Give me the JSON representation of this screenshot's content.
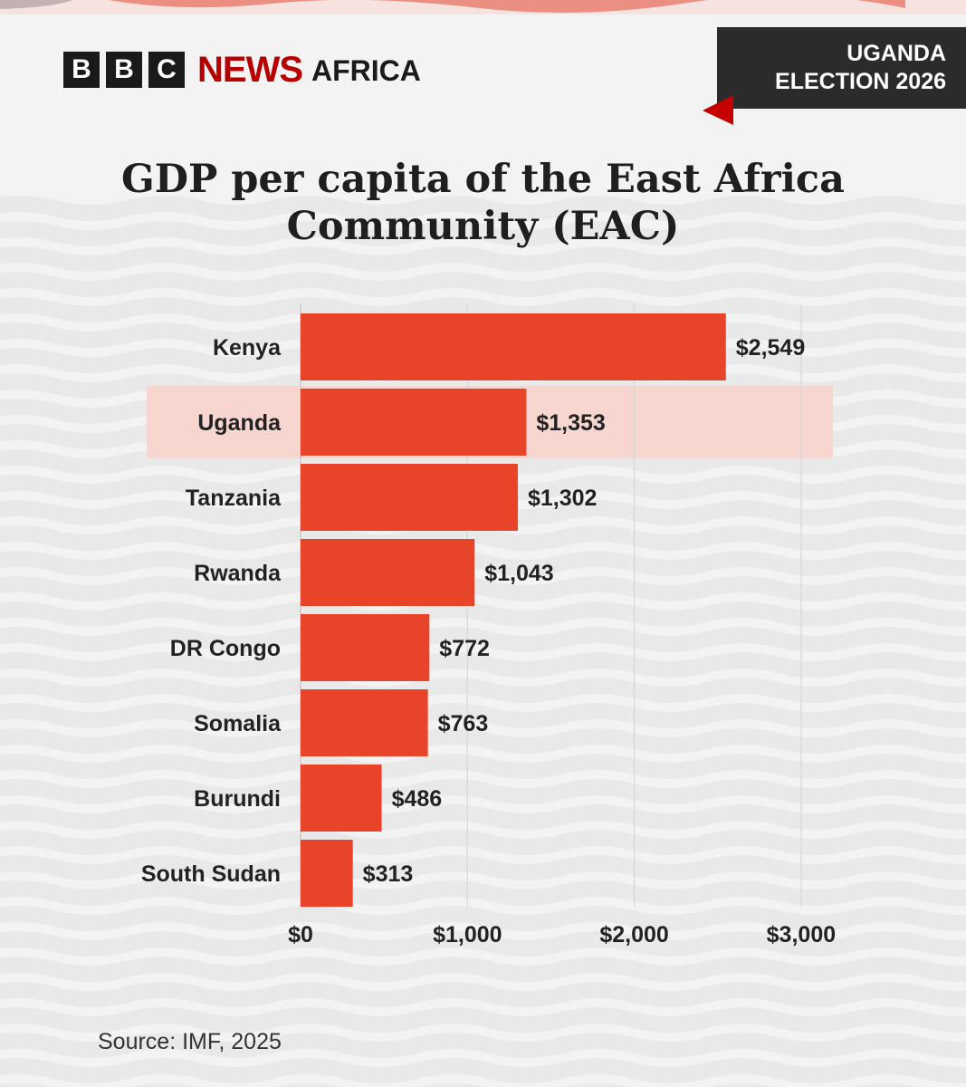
{
  "brand": {
    "blocks": [
      "B",
      "B",
      "C"
    ],
    "news": "NEWS",
    "region": "AFRICA",
    "news_color": "#b80000"
  },
  "tag": {
    "line1": "UGANDA",
    "line2": "ELECTION 2026"
  },
  "source": "Source:  IMF, 2025",
  "chart_data": {
    "type": "bar",
    "orientation": "horizontal",
    "title": "GDP per capita of the East Africa Community (EAC)",
    "title_lines": [
      "GDP per capita of the East Africa",
      "Community (EAC)"
    ],
    "categories": [
      "Kenya",
      "Uganda",
      "Tanzania",
      "Rwanda",
      "DR Congo",
      "Somalia",
      "Burundi",
      "South Sudan"
    ],
    "values": [
      2549,
      1353,
      1302,
      1043,
      772,
      763,
      486,
      313
    ],
    "value_labels": [
      "$2,549",
      "$1,353",
      "$1,302",
      "$1,043",
      "$772",
      "$763",
      "$486",
      "$313"
    ],
    "highlight": "Uganda",
    "xlim": [
      0,
      3000
    ],
    "xticks": [
      0,
      1000,
      2000,
      3000
    ],
    "xtick_labels": [
      "$0",
      "$1,000",
      "$2,000",
      "$3,000"
    ],
    "bar_color": "#e8442a",
    "highlight_color": "#f7d6d0",
    "grid": true,
    "xlabel": "",
    "ylabel": ""
  }
}
